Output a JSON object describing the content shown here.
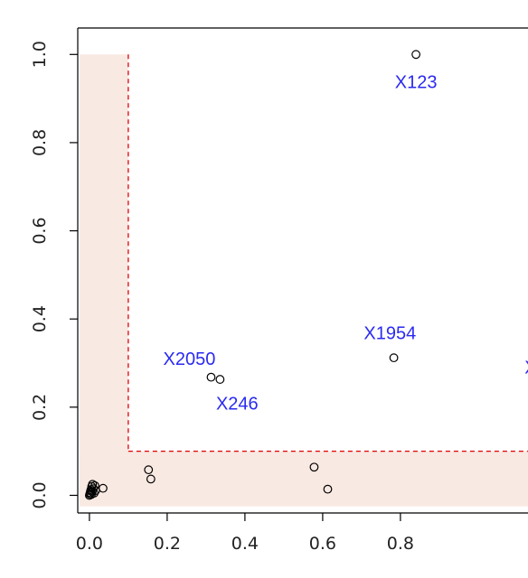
{
  "chart_data": {
    "type": "scatter",
    "title": "",
    "xlabel": "",
    "ylabel": "",
    "xlim": [
      -0.03,
      1.17
    ],
    "ylim": [
      -0.04,
      1.06
    ],
    "x_ticks": [
      "0.0",
      "0.2",
      "0.4",
      "0.6",
      "0.8"
    ],
    "y_ticks": [
      "0.0",
      "0.2",
      "0.4",
      "0.6",
      "0.8",
      "1.0"
    ],
    "grid": false,
    "threshold": 0.1,
    "colors": {
      "shade": "#f8e9e2",
      "threshold_line": "#e00000",
      "label": "#2a2af0",
      "point": "#000000",
      "axis": "#000000"
    },
    "points": [
      {
        "x": 0.0,
        "y": 0.0
      },
      {
        "x": 0.001,
        "y": 0.003
      },
      {
        "x": 0.002,
        "y": 0.006
      },
      {
        "x": 0.003,
        "y": 0.01
      },
      {
        "x": 0.004,
        "y": 0.013
      },
      {
        "x": 0.005,
        "y": 0.002
      },
      {
        "x": 0.006,
        "y": 0.02
      },
      {
        "x": 0.007,
        "y": 0.008
      },
      {
        "x": 0.008,
        "y": 0.025
      },
      {
        "x": 0.01,
        "y": 0.015
      },
      {
        "x": 0.012,
        "y": 0.005
      },
      {
        "x": 0.014,
        "y": 0.022
      },
      {
        "x": 0.016,
        "y": 0.011
      },
      {
        "x": 0.035,
        "y": 0.016
      },
      {
        "x": 0.152,
        "y": 0.058
      },
      {
        "x": 0.158,
        "y": 0.037
      },
      {
        "x": 0.578,
        "y": 0.064
      },
      {
        "x": 0.613,
        "y": 0.014
      },
      {
        "x": 0.313,
        "y": 0.268
      },
      {
        "x": 0.336,
        "y": 0.263
      },
      {
        "x": 0.783,
        "y": 0.312
      },
      {
        "x": 0.84,
        "y": 1.0
      }
    ],
    "annotations": [
      {
        "text": "X123",
        "x": 0.84,
        "y": 0.935
      },
      {
        "text": "X1954",
        "x": 0.773,
        "y": 0.365
      },
      {
        "text": "X2050",
        "x": 0.257,
        "y": 0.307
      },
      {
        "text": "X246",
        "x": 0.38,
        "y": 0.205
      },
      {
        "text": "X",
        "x": 1.135,
        "y": 0.287
      }
    ]
  }
}
